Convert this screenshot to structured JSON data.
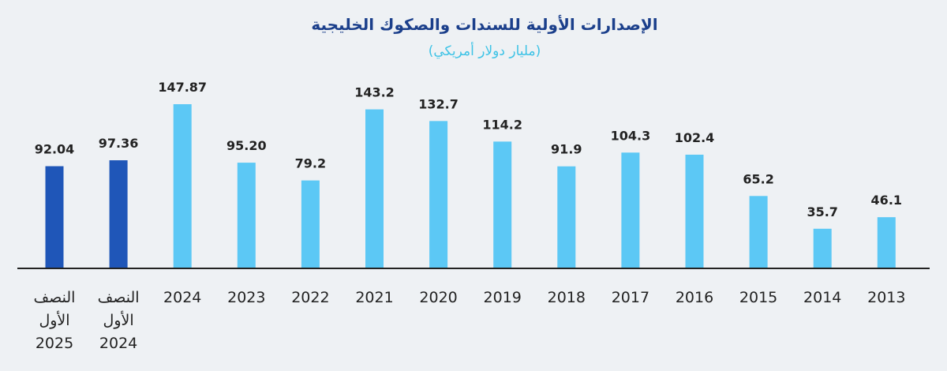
{
  "chart_data": {
    "type": "bar",
    "title": "الإصدارات الأولية للسندات والصكوك الخليجية",
    "subtitle": "(مليار دولار أمريكي)",
    "xlabel": "",
    "ylabel": "",
    "ylim": [
      0,
      150
    ],
    "grid": false,
    "categories": [
      [
        "النصف",
        "الأول",
        "2025"
      ],
      [
        "النصف",
        "الأول",
        "2024"
      ],
      [
        "2024"
      ],
      [
        "2023"
      ],
      [
        "2022"
      ],
      [
        "2021"
      ],
      [
        "2020"
      ],
      [
        "2019"
      ],
      [
        "2018"
      ],
      [
        "2017"
      ],
      [
        "2016"
      ],
      [
        "2015"
      ],
      [
        "2014"
      ],
      [
        "2013"
      ]
    ],
    "values": [
      92.04,
      97.36,
      147.87,
      95.2,
      79.2,
      143.2,
      132.7,
      114.2,
      91.9,
      104.3,
      102.4,
      65.2,
      35.7,
      46.1
    ],
    "value_labels": [
      "92.04",
      "97.36",
      "147.87",
      "95.20",
      "79.2",
      "143.2",
      "132.7",
      "114.2",
      "91.9",
      "104.3",
      "102.4",
      "65.2",
      "35.7",
      "46.1"
    ],
    "highlight_count": 2
  },
  "colors": {
    "highlight_bar": "#1f56b8",
    "bar": "#5cc8f5",
    "title": "#1b3f8b",
    "subtitle": "#3ec3e6",
    "text": "#222222",
    "axis": "#222222"
  }
}
